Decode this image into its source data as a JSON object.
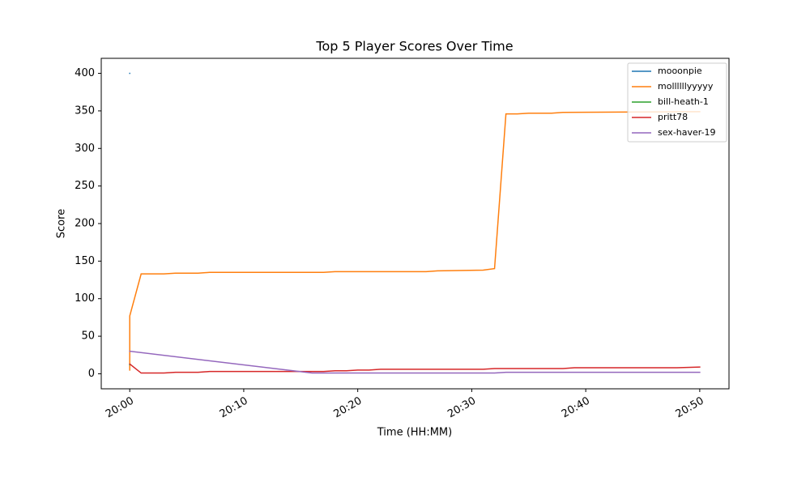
{
  "chart_data": {
    "type": "line",
    "title": "Top 5 Player Scores Over Time",
    "xlabel": "Time (HH:MM)",
    "ylabel": "Score",
    "xlim": [
      "19:57:30",
      "20:52:34"
    ],
    "ylim": [
      -20,
      420
    ],
    "xticks": [
      "20:00",
      "20:10",
      "20:20",
      "20:30",
      "20:40",
      "20:50"
    ],
    "yticks": [
      0,
      50,
      100,
      150,
      200,
      250,
      300,
      350,
      400
    ],
    "legend": "upper right",
    "series": [
      {
        "name": "mooonpie",
        "color": "#1f77b4",
        "x": [
          "20:00",
          "20:00"
        ],
        "values": [
          400,
          400
        ]
      },
      {
        "name": "mollllllyyyyy",
        "color": "#ff7f0e",
        "x": [
          "20:00",
          "20:00",
          "20:01",
          "20:03",
          "20:04",
          "20:06",
          "20:07",
          "20:17",
          "20:18",
          "20:26",
          "20:27",
          "20:31",
          "20:32",
          "20:33",
          "20:34",
          "20:35",
          "20:37",
          "20:38",
          "20:50"
        ],
        "values": [
          5,
          77,
          133,
          133,
          134,
          134,
          135,
          135,
          136,
          136,
          137,
          138,
          140,
          346,
          346,
          347,
          347,
          348,
          349
        ]
      },
      {
        "name": "bill-heath-1",
        "color": "#2ca02c",
        "x": [
          "20:00",
          "20:00"
        ],
        "values": [
          12,
          12
        ]
      },
      {
        "name": "pritt78",
        "color": "#d62728",
        "x": [
          "20:00",
          "20:01",
          "20:03",
          "20:04",
          "20:06",
          "20:07",
          "20:17",
          "20:18",
          "20:19",
          "20:20",
          "20:21",
          "20:22",
          "20:31",
          "20:32",
          "20:38",
          "20:39",
          "20:48",
          "20:50"
        ],
        "values": [
          13,
          1,
          1,
          2,
          2,
          3,
          3,
          4,
          4,
          5,
          5,
          6,
          6,
          7,
          7,
          8,
          8,
          9
        ]
      },
      {
        "name": "sex-haver-19",
        "color": "#9467bd",
        "x": [
          "20:00",
          "20:16",
          "20:32",
          "20:33",
          "20:50"
        ],
        "values": [
          30,
          1,
          1,
          2,
          2
        ]
      }
    ]
  }
}
